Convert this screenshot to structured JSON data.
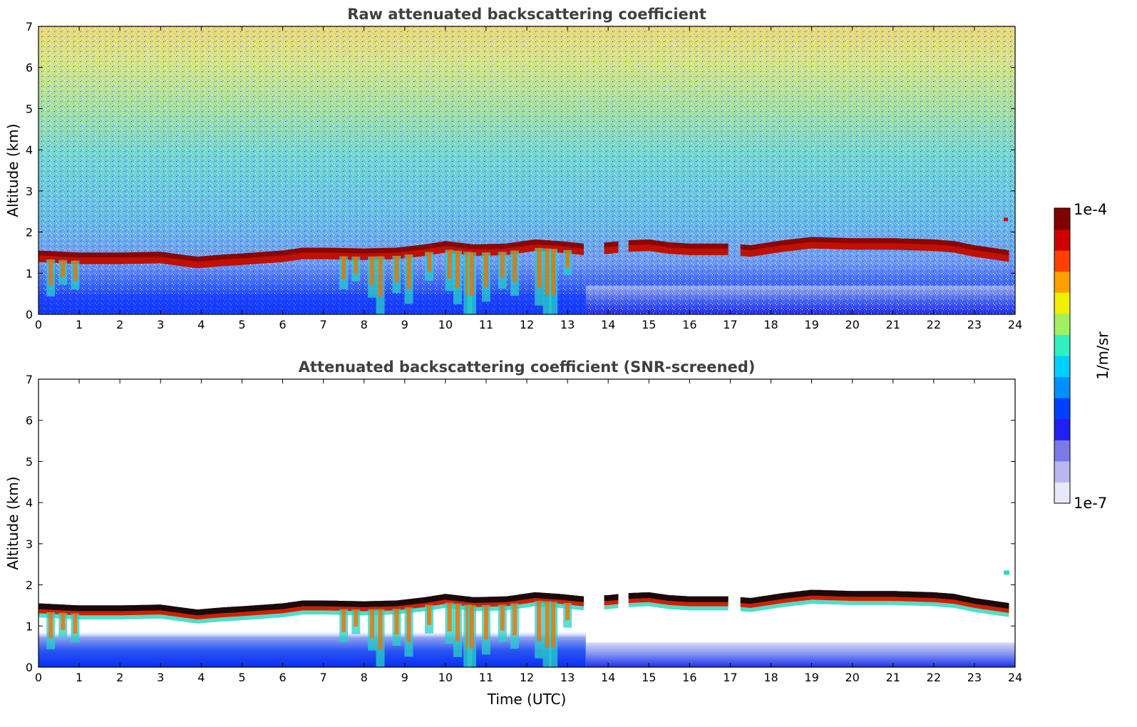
{
  "chart_data": [
    {
      "type": "heatmap",
      "title": "Raw attenuated backscattering coefficient",
      "ylabel": "Altitude (km)",
      "xlabel": "",
      "xlim": [
        0,
        24
      ],
      "ylim": [
        0,
        7
      ],
      "xticks": [
        0,
        1,
        2,
        3,
        4,
        5,
        6,
        7,
        8,
        9,
        10,
        11,
        12,
        13,
        14,
        15,
        16,
        17,
        18,
        19,
        20,
        21,
        22,
        23,
        24
      ],
      "yticks": [
        0,
        1,
        2,
        3,
        4,
        5,
        6,
        7
      ],
      "cloud_top_km": [
        [
          0,
          1.55
        ],
        [
          1,
          1.5
        ],
        [
          2,
          1.5
        ],
        [
          3,
          1.52
        ],
        [
          3.9,
          1.4
        ],
        [
          4.5,
          1.45
        ],
        [
          5,
          1.48
        ],
        [
          6,
          1.55
        ],
        [
          6.5,
          1.62
        ],
        [
          7,
          1.62
        ],
        [
          8,
          1.6
        ],
        [
          8.8,
          1.62
        ],
        [
          9.5,
          1.7
        ],
        [
          10,
          1.78
        ],
        [
          10.7,
          1.7
        ],
        [
          11.5,
          1.72
        ],
        [
          12.2,
          1.82
        ],
        [
          12.8,
          1.78
        ],
        [
          13.4,
          1.72
        ],
        [
          14.0,
          1.75
        ],
        [
          14.5,
          1.8
        ],
        [
          15,
          1.82
        ],
        [
          15.5,
          1.75
        ],
        [
          16,
          1.72
        ],
        [
          17,
          1.72
        ],
        [
          17.5,
          1.68
        ],
        [
          18.3,
          1.8
        ],
        [
          19,
          1.88
        ],
        [
          20,
          1.85
        ],
        [
          21,
          1.85
        ],
        [
          22,
          1.82
        ],
        [
          22.5,
          1.78
        ],
        [
          23,
          1.68
        ],
        [
          23.9,
          1.55
        ]
      ],
      "data_gap_hours": [
        13.45,
        13.9
      ]
    },
    {
      "type": "heatmap",
      "title": "Attenuated backscattering coefficient (SNR-screened)",
      "ylabel": "Altitude (km)",
      "xlabel": "Time (UTC)",
      "xlim": [
        0,
        24
      ],
      "ylim": [
        0,
        7
      ],
      "xticks": [
        0,
        1,
        2,
        3,
        4,
        5,
        6,
        7,
        8,
        9,
        10,
        11,
        12,
        13,
        14,
        15,
        16,
        17,
        18,
        19,
        20,
        21,
        22,
        23,
        24
      ],
      "yticks": [
        0,
        1,
        2,
        3,
        4,
        5,
        6,
        7
      ]
    }
  ],
  "colorbar": {
    "min_label": "1e-7",
    "max_label": "1e-4",
    "unit_label": "1/m/sr",
    "scale": "log",
    "colors": [
      "#e8e8fa",
      "#b8b8f0",
      "#7a7ae8",
      "#2020f0",
      "#0040ff",
      "#0090ff",
      "#00d0ff",
      "#30f0c0",
      "#a0f060",
      "#f0f000",
      "#ffa000",
      "#ff4000",
      "#d00000",
      "#800000"
    ]
  }
}
